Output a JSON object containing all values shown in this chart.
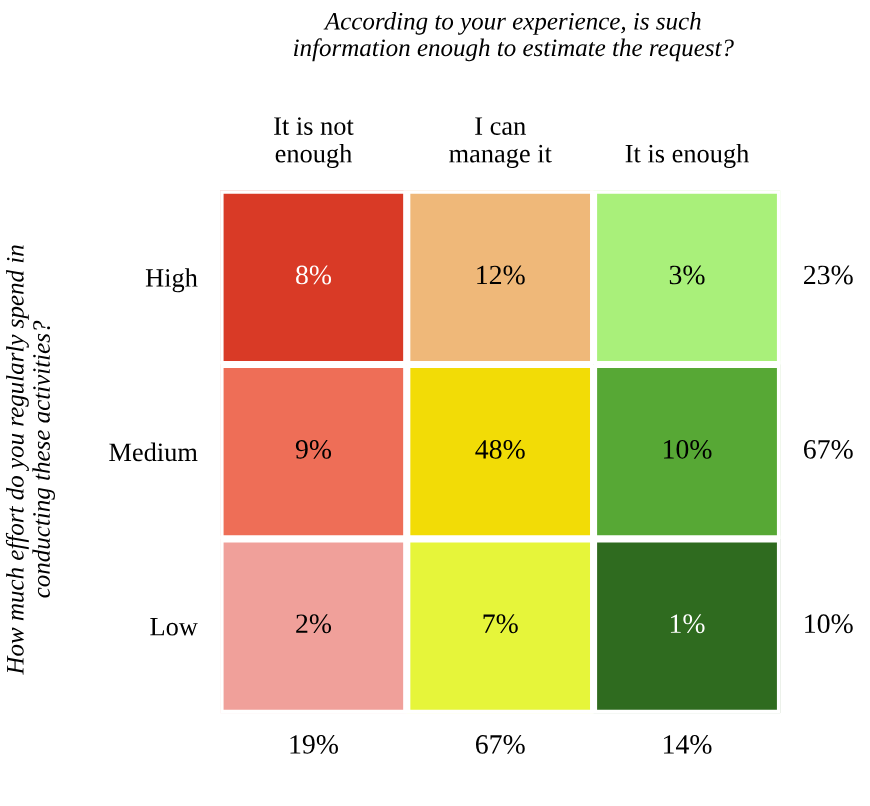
{
  "chart_data": {
    "type": "heatmap",
    "title": "According to your experience, is such\ninformation enough to estimate the request?",
    "ylabel": "How much effort do you regularly spend in\nconducting these activities?",
    "categories": [
      "It is not\nenough",
      "I can\nmanage it",
      "It is enough"
    ],
    "y_categories": [
      "High",
      "Medium",
      "Low"
    ],
    "y2_categories": [
      "23%",
      "67%",
      "10%"
    ],
    "cells": [
      [
        8,
        12,
        3
      ],
      [
        9,
        48,
        10
      ],
      [
        2,
        7,
        1
      ]
    ],
    "cell_labels": [
      [
        "8%",
        "12%",
        "3%"
      ],
      [
        "9%",
        "48%",
        "10%"
      ],
      [
        "2%",
        "7%",
        "1%"
      ]
    ],
    "colors": [
      [
        "#d93a26",
        "#efb879",
        "#a9f07a"
      ],
      [
        "#ee6e57",
        "#f2dc06",
        "#57a835"
      ],
      [
        "#f0a09a",
        "#e6f53a",
        "#2f6b1f"
      ]
    ],
    "annotations": [
      "19%",
      "67%",
      "14%"
    ]
  }
}
